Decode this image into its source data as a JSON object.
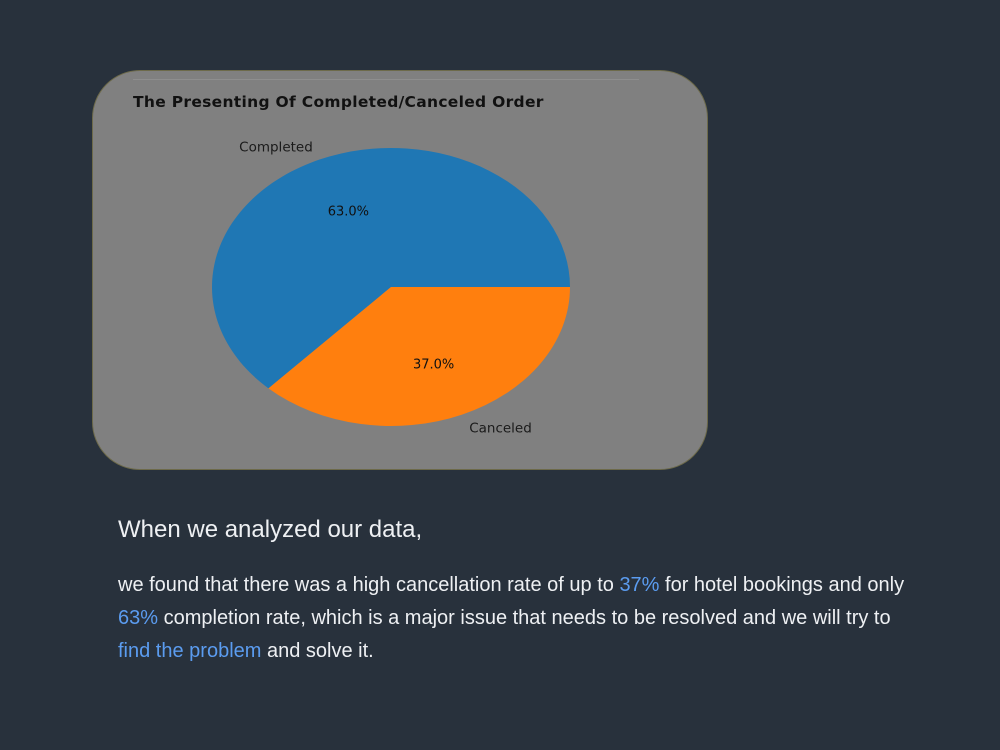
{
  "chart_data": {
    "type": "pie",
    "title": "The Presenting Of Completed/Canceled Order",
    "slices": [
      {
        "label": "Completed",
        "value": 63.0,
        "pct_label": "63.0%",
        "color": "#1f77b4"
      },
      {
        "label": "Canceled",
        "value": 37.0,
        "pct_label": "37.0%",
        "color": "#ff7f0e"
      }
    ],
    "start_angle_deg": 0,
    "direction": "counterclockwise",
    "legend": "none"
  },
  "text": {
    "intro": "When we analyzed our data,",
    "p1": "we found that there was a high cancellation rate of up to ",
    "h1": "37%",
    "p2": " for hotel bookings and only ",
    "h2": "63%",
    "p3": " completion rate, which is a major issue that needs to be resolved and we will try to ",
    "h3": "find the problem",
    "p4": " and solve it."
  },
  "colors": {
    "background": "#28313c",
    "card": "#808080",
    "highlight": "#5b9cf0"
  }
}
